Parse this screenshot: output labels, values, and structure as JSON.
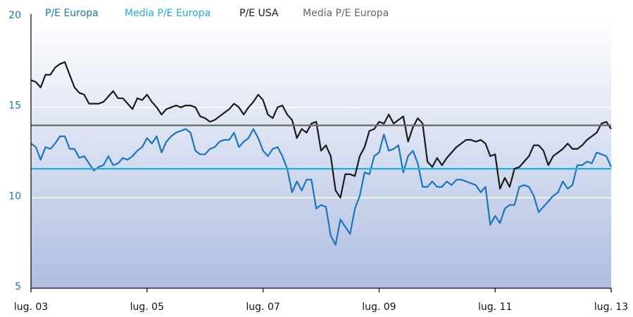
{
  "chart_data": {
    "type": "line",
    "categories": [
      "lug. 03",
      null,
      null,
      null,
      null,
      null,
      null,
      null,
      null,
      null,
      null,
      null,
      null,
      null,
      null,
      null,
      null,
      null,
      null,
      null,
      null,
      null,
      null,
      null,
      "lug. 05",
      null,
      null,
      null,
      null,
      null,
      null,
      null,
      null,
      null,
      null,
      null,
      null,
      null,
      null,
      null,
      null,
      null,
      null,
      null,
      null,
      null,
      null,
      null,
      "lug. 07",
      null,
      null,
      null,
      null,
      null,
      null,
      null,
      null,
      null,
      null,
      null,
      null,
      null,
      null,
      null,
      null,
      null,
      null,
      null,
      null,
      null,
      null,
      null,
      "lug. 09",
      null,
      null,
      null,
      null,
      null,
      null,
      null,
      null,
      null,
      null,
      null,
      null,
      null,
      null,
      null,
      null,
      null,
      null,
      null,
      null,
      null,
      null,
      null,
      "lug. 11",
      null,
      null,
      null,
      null,
      null,
      null,
      null,
      null,
      null,
      null,
      null,
      null,
      null,
      null,
      null,
      null,
      null,
      null,
      null,
      null,
      null,
      null,
      null,
      "lug. 13"
    ],
    "series": [
      {
        "name": "P/E Europa",
        "color": "#1b75bc",
        "values": [
          13.0,
          12.8,
          12.1,
          12.8,
          12.7,
          13.0,
          13.4,
          13.4,
          12.7,
          12.7,
          12.2,
          12.3,
          11.9,
          11.5,
          11.7,
          11.8,
          12.3,
          11.8,
          11.9,
          12.2,
          12.1,
          12.3,
          12.6,
          12.8,
          13.3,
          13.0,
          13.4,
          12.5,
          13.1,
          13.4,
          13.6,
          13.7,
          13.8,
          13.6,
          12.6,
          12.4,
          12.4,
          12.7,
          12.8,
          13.1,
          13.2,
          13.2,
          13.6,
          12.8,
          13.1,
          13.3,
          13.8,
          13.3,
          12.6,
          12.3,
          12.7,
          12.8,
          12.3,
          11.6,
          10.3,
          10.9,
          10.4,
          11.0,
          11.0,
          9.4,
          9.6,
          9.5,
          7.9,
          7.4,
          8.8,
          8.4,
          8.0,
          9.4,
          10.1,
          11.4,
          11.3,
          12.3,
          12.5,
          13.5,
          12.6,
          12.7,
          12.9,
          11.4,
          12.3,
          12.6,
          11.9,
          10.6,
          10.6,
          10.9,
          10.6,
          10.6,
          10.9,
          10.7,
          11.0,
          11.0,
          10.9,
          10.8,
          10.7,
          10.3,
          10.6,
          8.5,
          9.0,
          8.6,
          9.4,
          9.6,
          9.6,
          10.6,
          10.7,
          10.6,
          10.1,
          9.2,
          9.5,
          9.8,
          10.1,
          10.3,
          10.9,
          10.5,
          10.7,
          11.8,
          11.8,
          12.0,
          11.9,
          12.5,
          12.4,
          12.3,
          11.7
        ]
      },
      {
        "name": "Media P/E Europa",
        "color": "#1eaee6",
        "values": [
          11.6,
          11.6,
          11.6,
          11.6,
          11.6,
          11.6,
          11.6,
          11.6,
          11.6,
          11.6,
          11.6,
          11.6,
          11.6,
          11.6,
          11.6,
          11.6,
          11.6,
          11.6,
          11.6,
          11.6,
          11.6,
          11.6,
          11.6,
          11.6,
          11.6,
          11.6,
          11.6,
          11.6,
          11.6,
          11.6,
          11.6,
          11.6,
          11.6,
          11.6,
          11.6,
          11.6,
          11.6,
          11.6,
          11.6,
          11.6,
          11.6,
          11.6,
          11.6,
          11.6,
          11.6,
          11.6,
          11.6,
          11.6,
          11.6,
          11.6,
          11.6,
          11.6,
          11.6,
          11.6,
          11.6,
          11.6,
          11.6,
          11.6,
          11.6,
          11.6,
          11.6,
          11.6,
          11.6,
          11.6,
          11.6,
          11.6,
          11.6,
          11.6,
          11.6,
          11.6,
          11.6,
          11.6,
          11.6,
          11.6,
          11.6,
          11.6,
          11.6,
          11.6,
          11.6,
          11.6,
          11.6,
          11.6,
          11.6,
          11.6,
          11.6,
          11.6,
          11.6,
          11.6,
          11.6,
          11.6,
          11.6,
          11.6,
          11.6,
          11.6,
          11.6,
          11.6,
          11.6,
          11.6,
          11.6,
          11.6,
          11.6,
          11.6,
          11.6,
          11.6,
          11.6,
          11.6,
          11.6,
          11.6,
          11.6,
          11.6,
          11.6,
          11.6,
          11.6,
          11.6,
          11.6,
          11.6,
          11.6,
          11.6,
          11.6,
          11.6,
          11.6
        ]
      },
      {
        "name": "P/E USA",
        "color": "#1a1a1a",
        "values": [
          16.5,
          16.4,
          16.1,
          16.8,
          16.8,
          17.2,
          17.4,
          17.5,
          16.8,
          16.1,
          15.8,
          15.7,
          15.2,
          15.2,
          15.2,
          15.3,
          15.6,
          15.9,
          15.5,
          15.5,
          15.2,
          14.9,
          15.5,
          15.4,
          15.7,
          15.3,
          15.0,
          14.6,
          14.9,
          15.0,
          15.1,
          15.0,
          15.1,
          15.1,
          15.0,
          14.5,
          14.4,
          14.2,
          14.3,
          14.5,
          14.7,
          14.9,
          15.2,
          15.0,
          14.6,
          15.0,
          15.3,
          15.7,
          15.4,
          14.6,
          14.4,
          15.0,
          15.1,
          14.6,
          14.3,
          13.3,
          13.8,
          13.6,
          14.1,
          14.2,
          12.6,
          12.9,
          12.3,
          10.4,
          10.0,
          11.3,
          11.3,
          11.2,
          12.3,
          12.8,
          13.7,
          13.8,
          14.2,
          14.1,
          14.6,
          14.1,
          14.3,
          14.5,
          13.1,
          13.9,
          14.4,
          14.1,
          12.0,
          11.7,
          12.2,
          11.8,
          12.2,
          12.5,
          12.8,
          13.0,
          13.2,
          13.2,
          13.1,
          13.2,
          13.0,
          12.3,
          12.4,
          10.5,
          11.1,
          10.6,
          11.6,
          11.7,
          12.0,
          12.3,
          12.9,
          12.9,
          12.6,
          11.8,
          12.3,
          12.5,
          12.7,
          13.0,
          12.7,
          12.7,
          12.9,
          13.2,
          13.4,
          13.6,
          14.1,
          14.2,
          13.8
        ]
      },
      {
        "name": "Media P/E Europa",
        "color": "#666666",
        "values": [
          14.0,
          14.0,
          14.0,
          14.0,
          14.0,
          14.0,
          14.0,
          14.0,
          14.0,
          14.0,
          14.0,
          14.0,
          14.0,
          14.0,
          14.0,
          14.0,
          14.0,
          14.0,
          14.0,
          14.0,
          14.0,
          14.0,
          14.0,
          14.0,
          14.0,
          14.0,
          14.0,
          14.0,
          14.0,
          14.0,
          14.0,
          14.0,
          14.0,
          14.0,
          14.0,
          14.0,
          14.0,
          14.0,
          14.0,
          14.0,
          14.0,
          14.0,
          14.0,
          14.0,
          14.0,
          14.0,
          14.0,
          14.0,
          14.0,
          14.0,
          14.0,
          14.0,
          14.0,
          14.0,
          14.0,
          14.0,
          14.0,
          14.0,
          14.0,
          14.0,
          14.0,
          14.0,
          14.0,
          14.0,
          14.0,
          14.0,
          14.0,
          14.0,
          14.0,
          14.0,
          14.0,
          14.0,
          14.0,
          14.0,
          14.0,
          14.0,
          14.0,
          14.0,
          14.0,
          14.0,
          14.0,
          14.0,
          14.0,
          14.0,
          14.0,
          14.0,
          14.0,
          14.0,
          14.0,
          14.0,
          14.0,
          14.0,
          14.0,
          14.0,
          14.0,
          14.0,
          14.0,
          14.0,
          14.0,
          14.0,
          14.0,
          14.0,
          14.0,
          14.0,
          14.0,
          14.0,
          14.0,
          14.0,
          14.0,
          14.0,
          14.0,
          14.0,
          14.0,
          14.0,
          14.0,
          14.0,
          14.0,
          14.0,
          14.0,
          14.0,
          14.0
        ]
      }
    ],
    "ylim": [
      5,
      20
    ],
    "yticks": [
      5,
      10,
      15,
      20
    ],
    "grid": true,
    "tick_color": "#1b75bc"
  }
}
